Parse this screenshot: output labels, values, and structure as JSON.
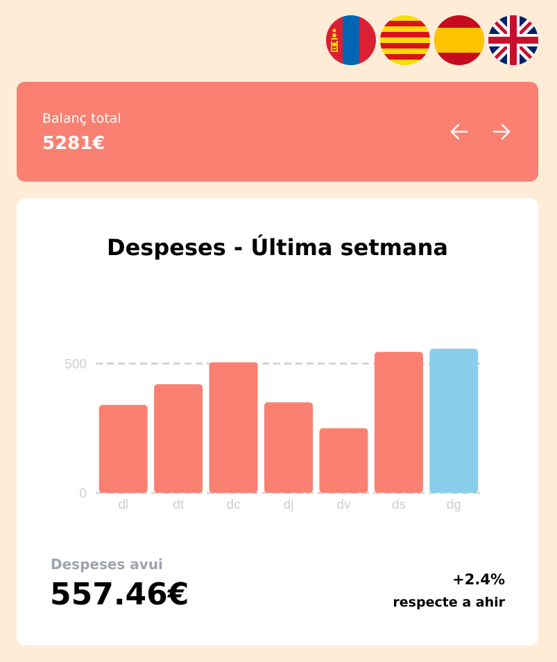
{
  "languages": [
    {
      "code": "mn",
      "icon": "mongolia-flag-icon"
    },
    {
      "code": "ca",
      "icon": "catalonia-flag-icon"
    },
    {
      "code": "es",
      "icon": "spain-flag-icon"
    },
    {
      "code": "en",
      "icon": "uk-flag-icon"
    }
  ],
  "balance": {
    "label": "Balanç total",
    "value": "5281€",
    "prev_icon": "arrow-left-icon",
    "next_icon": "arrow-right-icon"
  },
  "colors": {
    "background": "#ffecd7",
    "accent": "#fa8072",
    "highlight": "#89cfeb",
    "muted": "#9fa3b0"
  },
  "chart_data": {
    "type": "bar",
    "title": "Despeses - Última setmana",
    "categories": [
      "dl",
      "dt",
      "dc",
      "dj",
      "dv",
      "ds",
      "dg"
    ],
    "values": [
      340,
      420,
      505,
      350,
      250,
      545,
      557.46
    ],
    "highlight_index": 6,
    "yticks": [
      0,
      500
    ],
    "ylim": [
      0,
      557.46
    ],
    "grid": true,
    "xlabel": "",
    "ylabel": ""
  },
  "summary": {
    "today_label": "Despeses avui",
    "today_value": "557.46€",
    "change_value": "+2.4%",
    "change_label": "respecte a ahir"
  }
}
